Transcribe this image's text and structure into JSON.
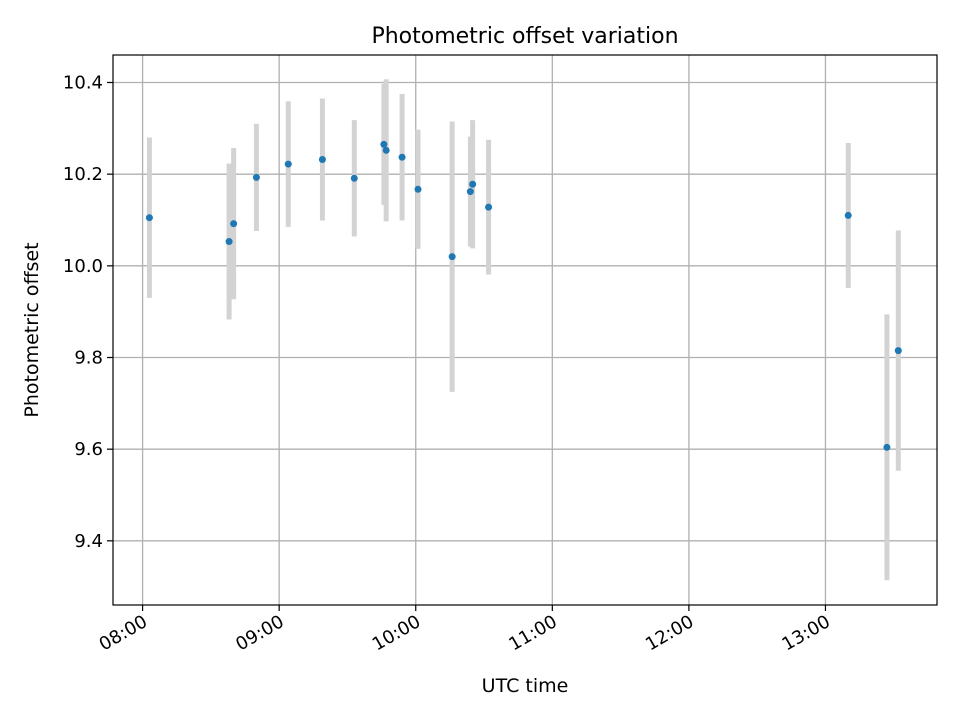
{
  "chart_data": {
    "type": "scatter",
    "title": "Photometric offset variation",
    "xlabel": "UTC time",
    "ylabel": "Photometric offset",
    "x_axis_type": "time",
    "xlim": [
      "07:47",
      "13:49"
    ],
    "ylim": [
      9.26,
      10.46
    ],
    "x_ticks": [
      "08:00",
      "09:00",
      "10:00",
      "11:00",
      "12:00",
      "13:00"
    ],
    "y_ticks": [
      9.4,
      9.6,
      9.8,
      10.0,
      10.2,
      10.4
    ],
    "y_tick_labels": [
      "9.4",
      "9.6",
      "9.8",
      "10.0",
      "10.2",
      "10.4"
    ],
    "grid": true,
    "colors": {
      "marker": "#1f77b4",
      "errorbar": "#d3d3d3",
      "grid": "#b0b0b0"
    },
    "series": [
      {
        "points": [
          {
            "x": "08:03",
            "y": 10.105,
            "err": 0.175
          },
          {
            "x": "08:38",
            "y": 10.053,
            "err": 0.17
          },
          {
            "x": "08:40",
            "y": 10.092,
            "err": 0.165
          },
          {
            "x": "08:50",
            "y": 10.193,
            "err": 0.117
          },
          {
            "x": "09:04",
            "y": 10.222,
            "err": 0.137
          },
          {
            "x": "09:19",
            "y": 10.232,
            "err": 0.133
          },
          {
            "x": "09:33",
            "y": 10.191,
            "err": 0.127
          },
          {
            "x": "09:46",
            "y": 10.265,
            "err": 0.132
          },
          {
            "x": "09:47",
            "y": 10.252,
            "err": 0.155
          },
          {
            "x": "09:54",
            "y": 10.237,
            "err": 0.138
          },
          {
            "x": "10:01",
            "y": 10.167,
            "err": 0.13
          },
          {
            "x": "10:16",
            "y": 10.02,
            "err": 0.295
          },
          {
            "x": "10:24",
            "y": 10.162,
            "err": 0.12
          },
          {
            "x": "10:25",
            "y": 10.178,
            "err": 0.14
          },
          {
            "x": "10:32",
            "y": 10.128,
            "err": 0.147
          },
          {
            "x": "13:10",
            "y": 10.11,
            "err": 0.158
          },
          {
            "x": "13:27",
            "y": 9.604,
            "err": 0.29
          },
          {
            "x": "13:32",
            "y": 9.815,
            "err": 0.262
          }
        ]
      }
    ]
  }
}
